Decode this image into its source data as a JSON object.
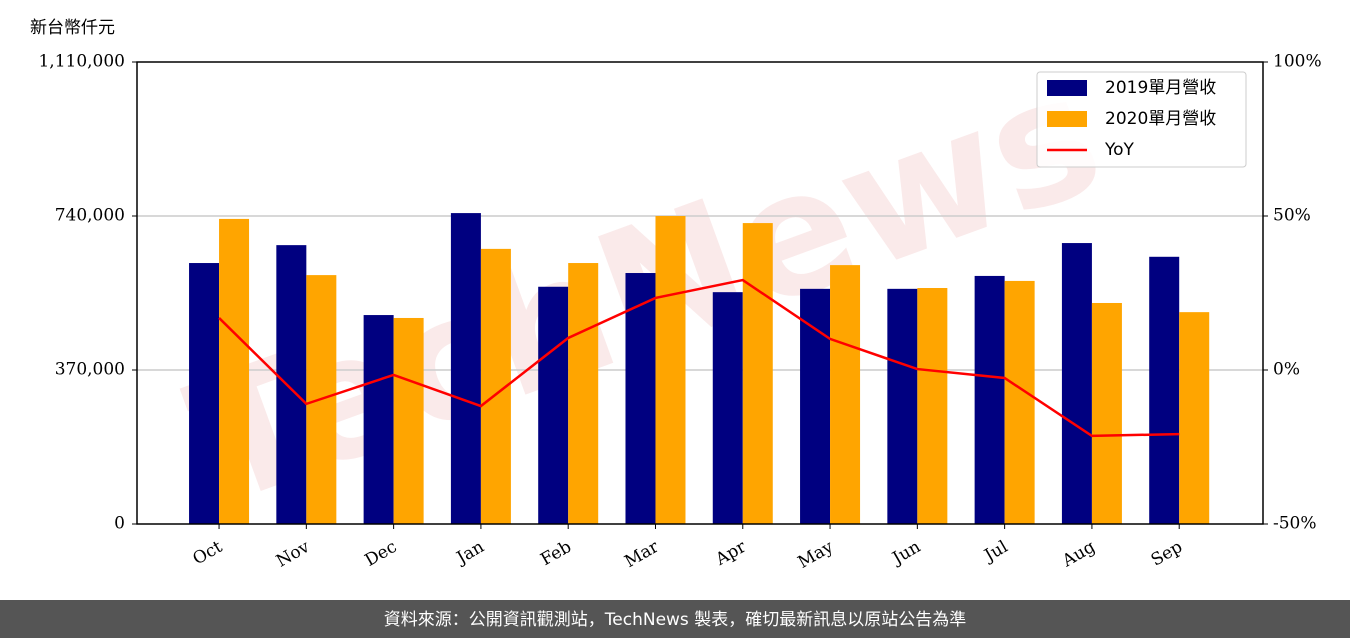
{
  "chart_data": {
    "type": "bar_line",
    "y_label": "新台幣仟元",
    "categories": [
      "Oct",
      "Nov",
      "Dec",
      "Jan",
      "Feb",
      "Mar",
      "Apr",
      "May",
      "Jun",
      "Jul",
      "Aug",
      "Sep"
    ],
    "series": [
      {
        "name": "2019單月營收",
        "color": "#000080",
        "type": "bar",
        "values": [
          627000,
          670000,
          502000,
          747000,
          570000,
          603000,
          557000,
          565000,
          565000,
          596000,
          675000,
          642000
        ]
      },
      {
        "name": "2020單月營收",
        "color": "#ffa500",
        "type": "bar",
        "values": [
          733000,
          598000,
          495000,
          661000,
          627000,
          740000,
          723000,
          622000,
          567000,
          584000,
          531000,
          509000
        ]
      },
      {
        "name": "YoY",
        "color": "#ff0000",
        "type": "line",
        "axis": "y2",
        "values": [
          16.9,
          -11.0,
          -1.6,
          -11.7,
          10.4,
          23.4,
          29.2,
          10.1,
          0.3,
          -2.6,
          -21.4,
          -20.8
        ]
      }
    ],
    "ylim": [
      0,
      1110000
    ],
    "yticks": [
      0,
      {
        "value": 370000,
        "label": "370,000"
      },
      {
        "value": 740000,
        "label": "740,000"
      },
      {
        "value": 1110000,
        "label": "1,110,000"
      }
    ],
    "y2lim": [
      -50,
      100
    ],
    "y2ticks": [
      {
        "value": -50,
        "label": "-50%"
      },
      {
        "value": 0,
        "label": "0%"
      },
      {
        "value": 50,
        "label": "50%"
      },
      {
        "value": 100,
        "label": "100%"
      }
    ],
    "grid": true,
    "legend": "upper right",
    "watermark": "TechNews",
    "footer": "資料來源：公開資訊觀測站，TechNews 製表，確切最新訊息以原站公告為準"
  }
}
